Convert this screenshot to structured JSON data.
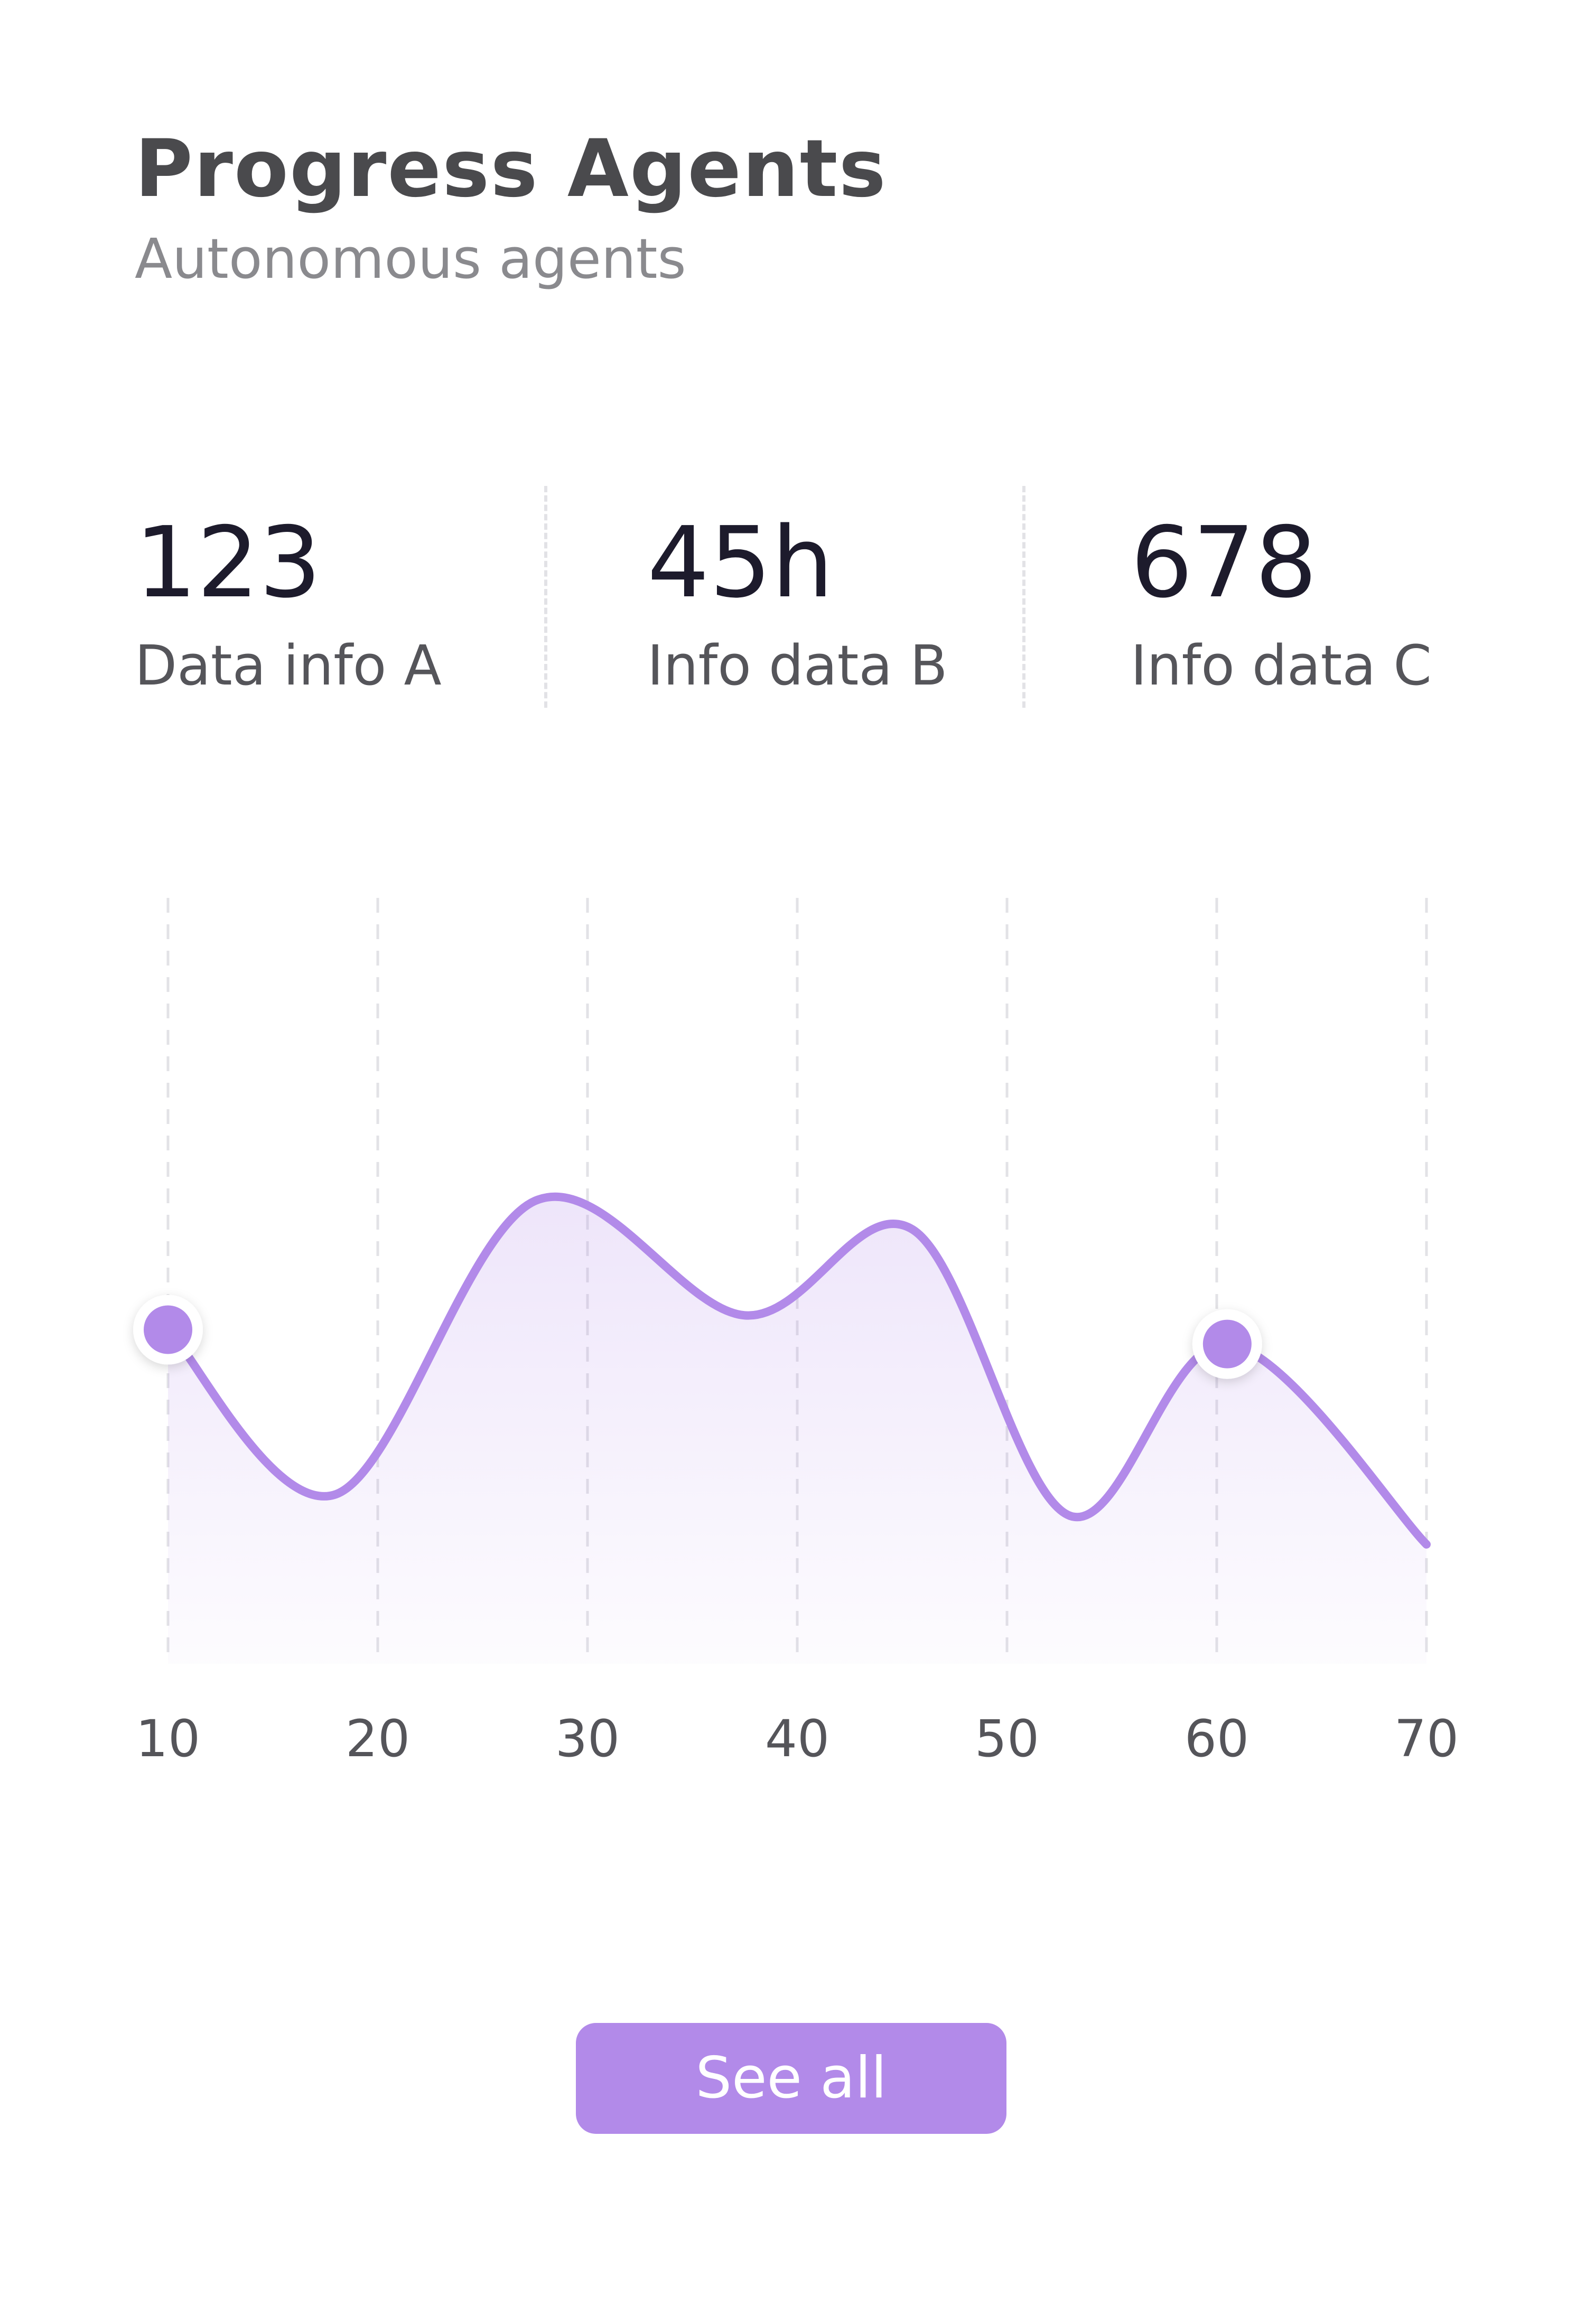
{
  "header": {
    "title": "Progress Agents",
    "subtitle": "Autonomous agents"
  },
  "stats": [
    {
      "value": "123",
      "label": "Data info A"
    },
    {
      "value": "45h",
      "label": "Info data B"
    },
    {
      "value": "678",
      "label": "Info data C"
    }
  ],
  "colors": {
    "accent": "#b28ae9",
    "title": "#4a4a4d",
    "value": "#1d1b2c",
    "grid": "#e2e2e6"
  },
  "chart_data": {
    "type": "area",
    "title": "",
    "xlabel": "",
    "ylabel": "",
    "x_ticks": [
      "10",
      "20",
      "30",
      "40",
      "50",
      "60",
      "70"
    ],
    "xlim": [
      10,
      70
    ],
    "ylim": [
      0,
      100
    ],
    "grid": "vertical dashed",
    "series": [
      {
        "points": [
          {
            "x": 10,
            "y": 50
          },
          {
            "x": 18,
            "y": 27
          },
          {
            "x": 27.5,
            "y": 68
          },
          {
            "x": 37.5,
            "y": 52
          },
          {
            "x": 45.5,
            "y": 64
          },
          {
            "x": 53,
            "y": 24
          },
          {
            "x": 60.5,
            "y": 48
          },
          {
            "x": 70,
            "y": 20
          }
        ]
      }
    ],
    "highlighted_points": [
      {
        "x": 10,
        "y": 50
      },
      {
        "x": 60.5,
        "y": 48
      }
    ]
  },
  "actions": {
    "see_all_label": "See all"
  }
}
